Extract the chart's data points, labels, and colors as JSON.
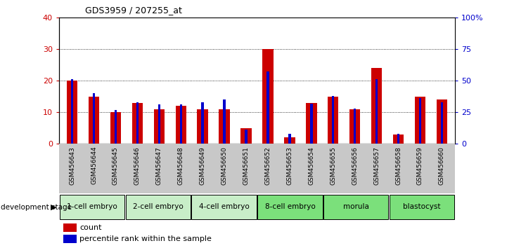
{
  "title": "GDS3959 / 207255_at",
  "samples": [
    "GSM456643",
    "GSM456644",
    "GSM456645",
    "GSM456646",
    "GSM456647",
    "GSM456648",
    "GSM456649",
    "GSM456650",
    "GSM456651",
    "GSM456652",
    "GSM456653",
    "GSM456654",
    "GSM456655",
    "GSM456656",
    "GSM456657",
    "GSM456658",
    "GSM456659",
    "GSM456660"
  ],
  "count_values": [
    20,
    15,
    10,
    13,
    11,
    12,
    11,
    11,
    5,
    30,
    2,
    13,
    15,
    11,
    24,
    3,
    15,
    14
  ],
  "percentile_values": [
    51,
    40,
    27,
    33,
    31,
    31,
    33,
    35,
    11,
    57,
    8,
    32,
    38,
    28,
    51,
    8,
    36,
    33
  ],
  "stages": [
    {
      "label": "1-cell embryo",
      "start": 0,
      "end": 3,
      "color": "#c8eec8"
    },
    {
      "label": "2-cell embryo",
      "start": 3,
      "end": 6,
      "color": "#c8eec8"
    },
    {
      "label": "4-cell embryo",
      "start": 6,
      "end": 9,
      "color": "#c8eec8"
    },
    {
      "label": "8-cell embryo",
      "start": 9,
      "end": 12,
      "color": "#7be07b"
    },
    {
      "label": "morula",
      "start": 12,
      "end": 15,
      "color": "#7be07b"
    },
    {
      "label": "blastocyst",
      "start": 15,
      "end": 18,
      "color": "#7be07b"
    }
  ],
  "ylim_left": [
    0,
    40
  ],
  "ylim_right": [
    0,
    100
  ],
  "count_color": "#cc0000",
  "percentile_color": "#0000cc",
  "tick_color_left": "#cc0000",
  "tick_color_right": "#0000cc",
  "sample_bg": "#c8c8c8",
  "yticks_left": [
    0,
    10,
    20,
    30,
    40
  ],
  "yticks_right": [
    0,
    25,
    50,
    75,
    100
  ],
  "ytick_labels_right": [
    "0",
    "25",
    "50",
    "75",
    "100%"
  ]
}
